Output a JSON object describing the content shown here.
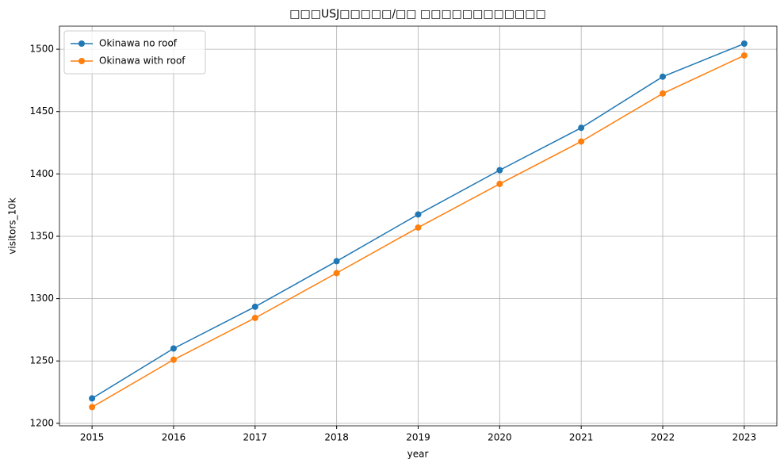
{
  "chart_data": {
    "type": "line",
    "title": "□□□USJ□□□□□/□□ □□□□□□□□□□□□",
    "x_label": "year",
    "y_label": "visitors_10k",
    "x": [
      2015,
      2016,
      2017,
      2018,
      2019,
      2020,
      2021,
      2022,
      2023
    ],
    "series": [
      {
        "name": "Okinawa no roof",
        "color": "#1f77b4",
        "values": [
          1220,
          1260,
          1293.5,
          1330,
          1367.5,
          1403,
          1437,
          1478,
          1504.5
        ]
      },
      {
        "name": "Okinawa with roof",
        "color": "#ff7f0e",
        "values": [
          1213,
          1251,
          1284.5,
          1320.5,
          1357,
          1392,
          1426,
          1464.5,
          1495
        ]
      }
    ],
    "xlim": [
      2014.6,
      2023.4
    ],
    "xticks": [
      2015,
      2016,
      2017,
      2018,
      2019,
      2020,
      2021,
      2022,
      2023
    ],
    "ylim": [
      1198,
      1518.5
    ],
    "yticks": [
      1200,
      1250,
      1300,
      1350,
      1400,
      1450,
      1500
    ],
    "grid": true,
    "legend": "upper-left"
  }
}
